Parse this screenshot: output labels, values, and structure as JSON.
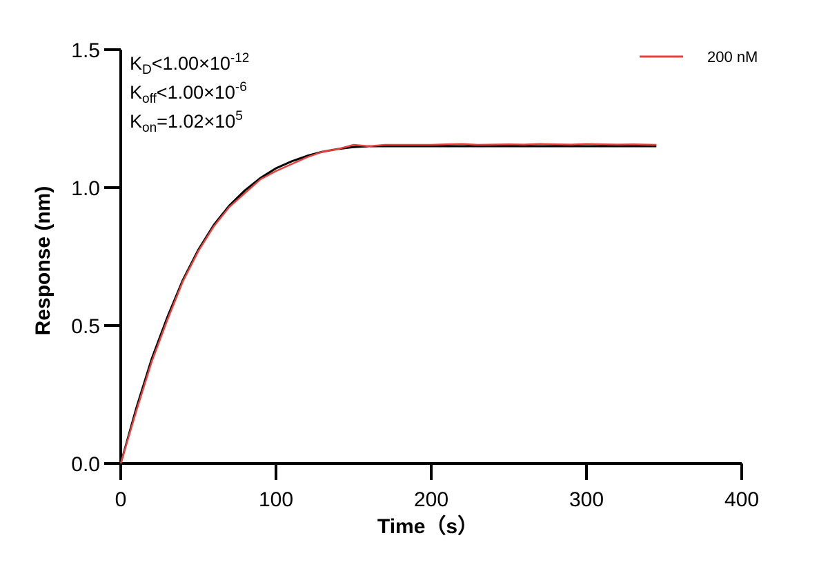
{
  "chart_data": {
    "type": "line",
    "xlabel": "Time（s）",
    "ylabel": "Response (nm)",
    "xlim": [
      0,
      400
    ],
    "ylim": [
      0,
      1.5
    ],
    "x_ticks": [
      "0",
      "100",
      "200",
      "300",
      "400"
    ],
    "y_ticks": [
      "0.0",
      "0.5",
      "1.0",
      "1.5"
    ],
    "grid": false,
    "legend_position": "top-right",
    "annotations": {
      "kd": {
        "main": "K",
        "sub": "D",
        "rest": "<1.00×10",
        "sup": "-12"
      },
      "koff": {
        "main": "K",
        "sub": "off",
        "rest": "<1.00×10",
        "sup": "-6"
      },
      "kon": {
        "main": "K",
        "sub": "on",
        "rest": "=1.02×10",
        "sup": "5"
      }
    },
    "series": [
      {
        "name": "200 nM",
        "color": "#e8413c",
        "role": "measured",
        "x": [
          0,
          10,
          20,
          30,
          40,
          50,
          60,
          70,
          80,
          90,
          100,
          110,
          120,
          130,
          140,
          150,
          160,
          170,
          180,
          190,
          200,
          210,
          220,
          230,
          240,
          250,
          260,
          270,
          280,
          290,
          300,
          310,
          320,
          330,
          345
        ],
        "y": [
          0,
          0.19,
          0.37,
          0.52,
          0.66,
          0.77,
          0.86,
          0.93,
          0.98,
          1.03,
          1.06,
          1.085,
          1.11,
          1.13,
          1.14,
          1.155,
          1.15,
          1.155,
          1.155,
          1.155,
          1.155,
          1.157,
          1.158,
          1.155,
          1.156,
          1.157,
          1.156,
          1.158,
          1.157,
          1.156,
          1.158,
          1.157,
          1.156,
          1.157,
          1.155
        ]
      },
      {
        "name": "",
        "color": "#000000",
        "role": "fit",
        "x": [
          0,
          10,
          20,
          30,
          40,
          50,
          60,
          70,
          80,
          90,
          100,
          110,
          120,
          130,
          140,
          150,
          160,
          180,
          200,
          250,
          300,
          345
        ],
        "y": [
          0,
          0.2,
          0.38,
          0.53,
          0.665,
          0.775,
          0.865,
          0.935,
          0.99,
          1.035,
          1.07,
          1.095,
          1.115,
          1.13,
          1.14,
          1.147,
          1.15,
          1.15,
          1.15,
          1.15,
          1.15,
          1.15
        ]
      }
    ]
  }
}
